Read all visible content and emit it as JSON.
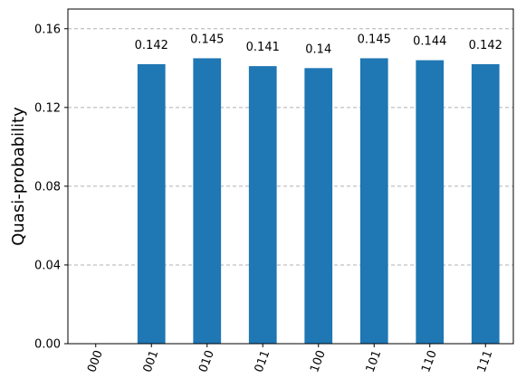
{
  "chart_data": {
    "type": "bar",
    "categories": [
      "000",
      "001",
      "010",
      "011",
      "100",
      "101",
      "110",
      "111"
    ],
    "values": [
      null,
      0.142,
      0.145,
      0.141,
      0.14,
      0.145,
      0.144,
      0.142
    ],
    "data_labels": [
      "",
      "0.142",
      "0.145",
      "0.141",
      "0.14",
      "0.145",
      "0.144",
      "0.142"
    ],
    "title": "",
    "xlabel": "",
    "ylabel": "Quasi-probability",
    "ylim": [
      0,
      0.17
    ],
    "yticks": [
      0.0,
      0.04,
      0.08,
      0.12,
      0.16
    ],
    "ytick_labels": [
      "0.00",
      "0.04",
      "0.08",
      "0.12",
      "0.16"
    ],
    "grid": "y-dashed",
    "bar_color": "#1f77b4",
    "grid_color": "#b0b0b0"
  }
}
